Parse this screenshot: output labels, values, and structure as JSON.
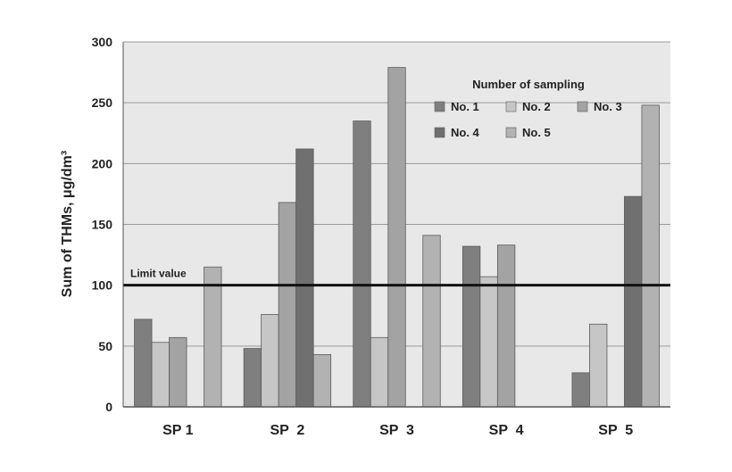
{
  "chart_data": {
    "type": "bar",
    "ylabel": "Sum of THMs, μg/dm³",
    "xlabel": "",
    "title": "",
    "categories": [
      "SP 1",
      "SP  2",
      "SP  3",
      "SP  4",
      "SP  5"
    ],
    "ylim": [
      0,
      300
    ],
    "yticks": [
      0,
      50,
      100,
      150,
      200,
      250,
      300
    ],
    "grid": true,
    "legend_title": "Number of sampling",
    "legend_position": "top-right",
    "series": [
      {
        "name": "No. 1",
        "color": "#7f7f7f",
        "values": [
          72,
          48,
          235,
          132,
          28
        ]
      },
      {
        "name": "No. 2",
        "color": "#c6c6c6",
        "values": [
          53,
          76,
          57,
          107,
          68
        ]
      },
      {
        "name": "No. 3",
        "color": "#a3a3a3",
        "values": [
          57,
          168,
          279,
          133,
          null
        ]
      },
      {
        "name": "No. 4",
        "color": "#707070",
        "values": [
          null,
          212,
          null,
          null,
          173
        ]
      },
      {
        "name": "No. 5",
        "color": "#b2b2b2",
        "values": [
          115,
          43,
          141,
          null,
          248
        ]
      }
    ],
    "limit_line": {
      "label": "Limit value",
      "value": 100
    }
  }
}
